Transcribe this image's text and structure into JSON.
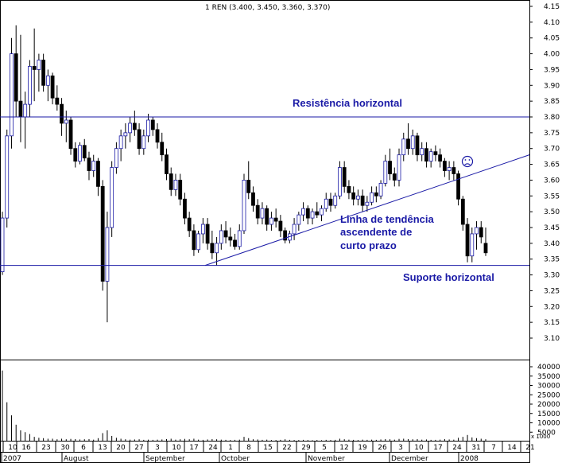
{
  "chart_data": {
    "type": "candlestick",
    "header": "1 REN (3.400, 3.450, 3.360, 3.370)",
    "price_axis": {
      "ylim": [
        3.04,
        4.18
      ],
      "ticks": [
        "4.15",
        "4.10",
        "4.05",
        "4.00",
        "3.95",
        "3.90",
        "3.85",
        "3.80",
        "3.75",
        "3.70",
        "3.65",
        "3.60",
        "3.55",
        "3.50",
        "3.45",
        "3.40",
        "3.35",
        "3.30",
        "3.25",
        "3.20",
        "3.15",
        "3.10"
      ]
    },
    "volume_axis": {
      "ylim": [
        0,
        45000
      ],
      "ticks": [
        "40000",
        "35000",
        "30000",
        "25000",
        "20000",
        "15000",
        "10000",
        "5000"
      ],
      "unit_label": "x 1000"
    },
    "x_axis": {
      "day_labels": [
        "10",
        "16",
        "23",
        "30",
        "6",
        "13",
        "20",
        "27",
        "3",
        "10",
        "17",
        "24",
        "1",
        "8",
        "15",
        "22",
        "29",
        "5",
        "12",
        "19",
        "26",
        "3",
        "10",
        "17",
        "24",
        "31",
        "7",
        "14",
        "21"
      ],
      "month_labels": [
        "2007",
        "August",
        "September",
        "October",
        "November",
        "December",
        "2008"
      ]
    },
    "reference_lines": [
      {
        "kind": "horizontal",
        "value": 3.8,
        "label": "Resistência horizontal"
      },
      {
        "kind": "horizontal",
        "value": 3.33,
        "label": "Suporte horizontal"
      },
      {
        "kind": "trend",
        "from": {
          "x": "September 24",
          "y": 3.33
        },
        "to": {
          "x": "January 21",
          "y": 3.68
        }
      }
    ],
    "annotations": [
      {
        "text_lines": [
          "Linha de tendência",
          "ascendente de",
          "curto prazo"
        ]
      }
    ],
    "candles": [
      {
        "o": 3.31,
        "h": 3.5,
        "l": 3.3,
        "c": 3.48,
        "v": 38000
      },
      {
        "o": 3.48,
        "h": 3.76,
        "l": 3.45,
        "c": 3.74,
        "v": 21000
      },
      {
        "o": 3.74,
        "h": 4.05,
        "l": 3.7,
        "c": 4.0,
        "v": 14000
      },
      {
        "o": 4.0,
        "h": 4.09,
        "l": 3.8,
        "c": 3.85,
        "v": 9000
      },
      {
        "o": 3.85,
        "h": 4.06,
        "l": 3.72,
        "c": 3.8,
        "v": 6000
      },
      {
        "o": 3.8,
        "h": 3.88,
        "l": 3.7,
        "c": 3.84,
        "v": 5000
      },
      {
        "o": 3.84,
        "h": 3.98,
        "l": 3.8,
        "c": 3.96,
        "v": 4000
      },
      {
        "o": 3.96,
        "h": 4.08,
        "l": 3.85,
        "c": 3.95,
        "v": 2500
      },
      {
        "o": 3.95,
        "h": 4.0,
        "l": 3.88,
        "c": 3.98,
        "v": 2000
      },
      {
        "o": 3.98,
        "h": 4.0,
        "l": 3.88,
        "c": 3.9,
        "v": 1800
      },
      {
        "o": 3.9,
        "h": 3.95,
        "l": 3.85,
        "c": 3.93,
        "v": 1500
      },
      {
        "o": 3.93,
        "h": 3.94,
        "l": 3.84,
        "c": 3.86,
        "v": 1500
      },
      {
        "o": 3.86,
        "h": 3.9,
        "l": 3.82,
        "c": 3.84,
        "v": 1200
      },
      {
        "o": 3.84,
        "h": 3.86,
        "l": 3.74,
        "c": 3.78,
        "v": 1500
      },
      {
        "o": 3.78,
        "h": 3.82,
        "l": 3.72,
        "c": 3.79,
        "v": 1200
      },
      {
        "o": 3.79,
        "h": 3.8,
        "l": 3.68,
        "c": 3.7,
        "v": 1400
      },
      {
        "o": 3.7,
        "h": 3.72,
        "l": 3.64,
        "c": 3.66,
        "v": 1300
      },
      {
        "o": 3.66,
        "h": 3.72,
        "l": 3.65,
        "c": 3.71,
        "v": 1100
      },
      {
        "o": 3.71,
        "h": 3.73,
        "l": 3.66,
        "c": 3.67,
        "v": 1200
      },
      {
        "o": 3.67,
        "h": 3.69,
        "l": 3.6,
        "c": 3.63,
        "v": 1300
      },
      {
        "o": 3.63,
        "h": 3.68,
        "l": 3.61,
        "c": 3.66,
        "v": 1000
      },
      {
        "o": 3.66,
        "h": 3.67,
        "l": 3.55,
        "c": 3.58,
        "v": 1800
      },
      {
        "o": 3.58,
        "h": 3.6,
        "l": 3.25,
        "c": 3.28,
        "v": 4500
      },
      {
        "o": 3.28,
        "h": 3.5,
        "l": 3.15,
        "c": 3.45,
        "v": 6000
      },
      {
        "o": 3.45,
        "h": 3.66,
        "l": 3.42,
        "c": 3.64,
        "v": 3000
      },
      {
        "o": 3.64,
        "h": 3.72,
        "l": 3.62,
        "c": 3.7,
        "v": 2000
      },
      {
        "o": 3.7,
        "h": 3.76,
        "l": 3.66,
        "c": 3.74,
        "v": 1500
      },
      {
        "o": 3.74,
        "h": 3.78,
        "l": 3.7,
        "c": 3.75,
        "v": 1200
      },
      {
        "o": 3.75,
        "h": 3.8,
        "l": 3.72,
        "c": 3.78,
        "v": 1000
      },
      {
        "o": 3.78,
        "h": 3.82,
        "l": 3.74,
        "c": 3.76,
        "v": 1100
      },
      {
        "o": 3.76,
        "h": 3.78,
        "l": 3.68,
        "c": 3.7,
        "v": 1200
      },
      {
        "o": 3.7,
        "h": 3.76,
        "l": 3.68,
        "c": 3.74,
        "v": 900
      },
      {
        "o": 3.74,
        "h": 3.81,
        "l": 3.72,
        "c": 3.79,
        "v": 1000
      },
      {
        "o": 3.79,
        "h": 3.8,
        "l": 3.74,
        "c": 3.76,
        "v": 900
      },
      {
        "o": 3.76,
        "h": 3.78,
        "l": 3.7,
        "c": 3.72,
        "v": 1000
      },
      {
        "o": 3.72,
        "h": 3.75,
        "l": 3.66,
        "c": 3.68,
        "v": 1100
      },
      {
        "o": 3.68,
        "h": 3.7,
        "l": 3.6,
        "c": 3.62,
        "v": 1300
      },
      {
        "o": 3.62,
        "h": 3.64,
        "l": 3.55,
        "c": 3.57,
        "v": 1500
      },
      {
        "o": 3.57,
        "h": 3.62,
        "l": 3.55,
        "c": 3.6,
        "v": 1000
      },
      {
        "o": 3.6,
        "h": 3.62,
        "l": 3.52,
        "c": 3.54,
        "v": 1200
      },
      {
        "o": 3.54,
        "h": 3.56,
        "l": 3.46,
        "c": 3.48,
        "v": 1400
      },
      {
        "o": 3.48,
        "h": 3.5,
        "l": 3.42,
        "c": 3.44,
        "v": 1200
      },
      {
        "o": 3.44,
        "h": 3.46,
        "l": 3.36,
        "c": 3.38,
        "v": 1500
      },
      {
        "o": 3.38,
        "h": 3.44,
        "l": 3.37,
        "c": 3.43,
        "v": 1000
      },
      {
        "o": 3.43,
        "h": 3.48,
        "l": 3.4,
        "c": 3.46,
        "v": 900
      },
      {
        "o": 3.46,
        "h": 3.48,
        "l": 3.38,
        "c": 3.4,
        "v": 1100
      },
      {
        "o": 3.4,
        "h": 3.44,
        "l": 3.35,
        "c": 3.37,
        "v": 1300
      },
      {
        "o": 3.37,
        "h": 3.42,
        "l": 3.33,
        "c": 3.4,
        "v": 1200
      },
      {
        "o": 3.4,
        "h": 3.46,
        "l": 3.38,
        "c": 3.44,
        "v": 1000
      },
      {
        "o": 3.44,
        "h": 3.47,
        "l": 3.4,
        "c": 3.42,
        "v": 900
      },
      {
        "o": 3.42,
        "h": 3.45,
        "l": 3.39,
        "c": 3.41,
        "v": 800
      },
      {
        "o": 3.41,
        "h": 3.43,
        "l": 3.38,
        "c": 3.39,
        "v": 900
      },
      {
        "o": 3.39,
        "h": 3.46,
        "l": 3.38,
        "c": 3.44,
        "v": 1000
      },
      {
        "o": 3.44,
        "h": 3.62,
        "l": 3.43,
        "c": 3.6,
        "v": 2500
      },
      {
        "o": 3.6,
        "h": 3.66,
        "l": 3.54,
        "c": 3.56,
        "v": 1800
      },
      {
        "o": 3.56,
        "h": 3.58,
        "l": 3.5,
        "c": 3.52,
        "v": 1200
      },
      {
        "o": 3.52,
        "h": 3.54,
        "l": 3.46,
        "c": 3.48,
        "v": 1100
      },
      {
        "o": 3.48,
        "h": 3.53,
        "l": 3.46,
        "c": 3.51,
        "v": 900
      },
      {
        "o": 3.51,
        "h": 3.52,
        "l": 3.44,
        "c": 3.46,
        "v": 1000
      },
      {
        "o": 3.46,
        "h": 3.5,
        "l": 3.44,
        "c": 3.48,
        "v": 800
      },
      {
        "o": 3.48,
        "h": 3.51,
        "l": 3.45,
        "c": 3.47,
        "v": 800
      },
      {
        "o": 3.47,
        "h": 3.49,
        "l": 3.42,
        "c": 3.44,
        "v": 900
      },
      {
        "o": 3.44,
        "h": 3.45,
        "l": 3.4,
        "c": 3.41,
        "v": 1200
      },
      {
        "o": 3.41,
        "h": 3.44,
        "l": 3.4,
        "c": 3.43,
        "v": 900
      },
      {
        "o": 3.43,
        "h": 3.48,
        "l": 3.41,
        "c": 3.46,
        "v": 800
      },
      {
        "o": 3.46,
        "h": 3.5,
        "l": 3.44,
        "c": 3.49,
        "v": 800
      },
      {
        "o": 3.49,
        "h": 3.53,
        "l": 3.47,
        "c": 3.51,
        "v": 900
      },
      {
        "o": 3.51,
        "h": 3.52,
        "l": 3.46,
        "c": 3.48,
        "v": 800
      },
      {
        "o": 3.48,
        "h": 3.51,
        "l": 3.46,
        "c": 3.5,
        "v": 700
      },
      {
        "o": 3.5,
        "h": 3.53,
        "l": 3.48,
        "c": 3.49,
        "v": 800
      },
      {
        "o": 3.49,
        "h": 3.52,
        "l": 3.47,
        "c": 3.51,
        "v": 700
      },
      {
        "o": 3.51,
        "h": 3.56,
        "l": 3.5,
        "c": 3.54,
        "v": 900
      },
      {
        "o": 3.54,
        "h": 3.56,
        "l": 3.5,
        "c": 3.52,
        "v": 800
      },
      {
        "o": 3.52,
        "h": 3.56,
        "l": 3.51,
        "c": 3.55,
        "v": 900
      },
      {
        "o": 3.55,
        "h": 3.66,
        "l": 3.54,
        "c": 3.64,
        "v": 1500
      },
      {
        "o": 3.64,
        "h": 3.66,
        "l": 3.56,
        "c": 3.58,
        "v": 1200
      },
      {
        "o": 3.58,
        "h": 3.6,
        "l": 3.54,
        "c": 3.56,
        "v": 1000
      },
      {
        "o": 3.56,
        "h": 3.58,
        "l": 3.52,
        "c": 3.54,
        "v": 900
      },
      {
        "o": 3.54,
        "h": 3.57,
        "l": 3.52,
        "c": 3.55,
        "v": 800
      },
      {
        "o": 3.55,
        "h": 3.57,
        "l": 3.5,
        "c": 3.52,
        "v": 1000
      },
      {
        "o": 3.52,
        "h": 3.55,
        "l": 3.5,
        "c": 3.53,
        "v": 900
      },
      {
        "o": 3.53,
        "h": 3.58,
        "l": 3.52,
        "c": 3.56,
        "v": 1000
      },
      {
        "o": 3.56,
        "h": 3.58,
        "l": 3.53,
        "c": 3.55,
        "v": 900
      },
      {
        "o": 3.55,
        "h": 3.6,
        "l": 3.54,
        "c": 3.59,
        "v": 1100
      },
      {
        "o": 3.59,
        "h": 3.68,
        "l": 3.58,
        "c": 3.66,
        "v": 1300
      },
      {
        "o": 3.66,
        "h": 3.7,
        "l": 3.6,
        "c": 3.62,
        "v": 1200
      },
      {
        "o": 3.62,
        "h": 3.64,
        "l": 3.58,
        "c": 3.6,
        "v": 1000
      },
      {
        "o": 3.6,
        "h": 3.7,
        "l": 3.58,
        "c": 3.68,
        "v": 1400
      },
      {
        "o": 3.68,
        "h": 3.75,
        "l": 3.66,
        "c": 3.73,
        "v": 1500
      },
      {
        "o": 3.73,
        "h": 3.78,
        "l": 3.68,
        "c": 3.7,
        "v": 1300
      },
      {
        "o": 3.7,
        "h": 3.76,
        "l": 3.68,
        "c": 3.74,
        "v": 1200
      },
      {
        "o": 3.74,
        "h": 3.75,
        "l": 3.66,
        "c": 3.68,
        "v": 1300
      },
      {
        "o": 3.68,
        "h": 3.72,
        "l": 3.66,
        "c": 3.7,
        "v": 1000
      },
      {
        "o": 3.7,
        "h": 3.72,
        "l": 3.64,
        "c": 3.66,
        "v": 1100
      },
      {
        "o": 3.66,
        "h": 3.7,
        "l": 3.64,
        "c": 3.69,
        "v": 900
      },
      {
        "o": 3.69,
        "h": 3.71,
        "l": 3.66,
        "c": 3.68,
        "v": 900
      },
      {
        "o": 3.68,
        "h": 3.7,
        "l": 3.64,
        "c": 3.66,
        "v": 1000
      },
      {
        "o": 3.66,
        "h": 3.67,
        "l": 3.61,
        "c": 3.63,
        "v": 1300
      },
      {
        "o": 3.63,
        "h": 3.66,
        "l": 3.6,
        "c": 3.64,
        "v": 1100
      },
      {
        "o": 3.64,
        "h": 3.66,
        "l": 3.6,
        "c": 3.62,
        "v": 1000
      },
      {
        "o": 3.62,
        "h": 3.63,
        "l": 3.52,
        "c": 3.54,
        "v": 2000
      },
      {
        "o": 3.54,
        "h": 3.55,
        "l": 3.44,
        "c": 3.46,
        "v": 2500
      },
      {
        "o": 3.46,
        "h": 3.48,
        "l": 3.34,
        "c": 3.36,
        "v": 3500
      },
      {
        "o": 3.36,
        "h": 3.45,
        "l": 3.34,
        "c": 3.43,
        "v": 2200
      },
      {
        "o": 3.43,
        "h": 3.47,
        "l": 3.38,
        "c": 3.45,
        "v": 1800
      },
      {
        "o": 3.45,
        "h": 3.47,
        "l": 3.4,
        "c": 3.42,
        "v": 1500
      },
      {
        "o": 3.4,
        "h": 3.45,
        "l": 3.36,
        "c": 3.37,
        "v": 1200
      }
    ]
  }
}
